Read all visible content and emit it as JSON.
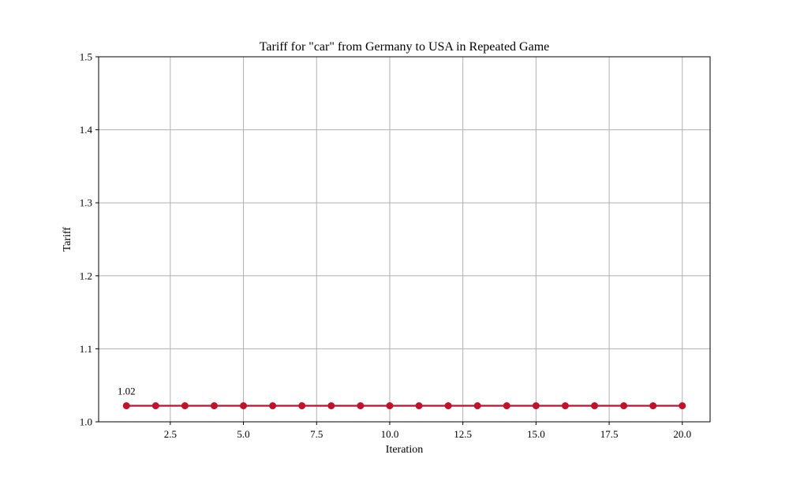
{
  "chart_data": {
    "type": "line",
    "title": "Tariff for \"car\" from Germany to USA in Repeated Game",
    "xlabel": "Iteration",
    "ylabel": "Tariff",
    "xlim": [
      0.05,
      20.95
    ],
    "ylim": [
      1.0,
      1.5
    ],
    "x_ticks": [
      2.5,
      5.0,
      7.5,
      10.0,
      12.5,
      15.0,
      17.5,
      20.0
    ],
    "x_tick_labels": [
      "2.5",
      "5.0",
      "7.5",
      "10.0",
      "12.5",
      "15.0",
      "17.5",
      "20.0"
    ],
    "y_ticks": [
      1.0,
      1.1,
      1.2,
      1.3,
      1.4,
      1.5
    ],
    "y_tick_labels": [
      "1.0",
      "1.1",
      "1.2",
      "1.3",
      "1.4",
      "1.5"
    ],
    "grid": true,
    "series": [
      {
        "color": "#c0132a",
        "marker": "circle",
        "x": [
          1,
          2,
          3,
          4,
          5,
          6,
          7,
          8,
          9,
          10,
          11,
          12,
          13,
          14,
          15,
          16,
          17,
          18,
          19,
          20
        ],
        "y": [
          1.022,
          1.022,
          1.022,
          1.022,
          1.022,
          1.022,
          1.022,
          1.022,
          1.022,
          1.022,
          1.022,
          1.022,
          1.022,
          1.022,
          1.022,
          1.022,
          1.022,
          1.022,
          1.022,
          1.022
        ]
      }
    ],
    "annotations": [
      {
        "text": "1.02",
        "x": 1,
        "y": 1.022
      }
    ]
  }
}
